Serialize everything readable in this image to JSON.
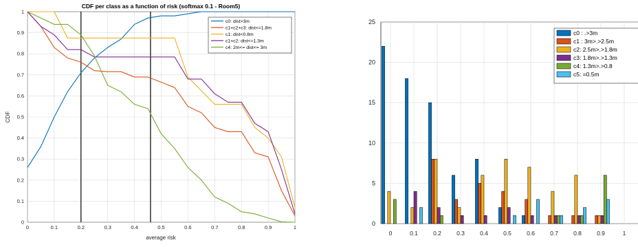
{
  "chart_data": [
    {
      "type": "line",
      "title": "CDF per class as a function of risk (softmax 0.1 - Room5)",
      "xlabel": "average risk",
      "ylabel": "CDF",
      "xlim": [
        0,
        1
      ],
      "ylim": [
        0,
        1
      ],
      "x_ticks": [
        "0",
        "0.1",
        "0.2",
        "0.3",
        "0.4",
        "0.5",
        "0.6",
        "0.7",
        "0.8",
        "0.9",
        "1"
      ],
      "y_ticks": [
        "0",
        "0.1",
        "0.2",
        "0.3",
        "0.4",
        "0.5",
        "0.6",
        "0.7",
        "0.8",
        "0.9",
        "1"
      ],
      "grid": true,
      "legend_position": "top-right",
      "series": [
        {
          "name": "c0: dist>3m",
          "color": "#0072BD",
          "x": [
            0,
            0.05,
            0.1,
            0.15,
            0.2,
            0.25,
            0.3,
            0.35,
            0.4,
            0.45,
            0.5,
            0.55,
            0.6,
            0.65,
            1
          ],
          "y": [
            0.26,
            0.36,
            0.5,
            0.62,
            0.71,
            0.78,
            0.83,
            0.87,
            0.94,
            0.97,
            0.98,
            0.98,
            0.99,
            1,
            1
          ]
        },
        {
          "name": "c1+c2+c3: dist<=1.8m",
          "color": "#D95319",
          "x": [
            0,
            0.05,
            0.1,
            0.15,
            0.2,
            0.25,
            0.3,
            0.35,
            0.4,
            0.45,
            0.5,
            0.55,
            0.6,
            0.65,
            0.7,
            0.75,
            0.8,
            0.85,
            0.9,
            0.95,
            1
          ],
          "y": [
            1,
            0.93,
            0.83,
            0.78,
            0.76,
            0.72,
            0.715,
            0.715,
            0.69,
            0.69,
            0.665,
            0.64,
            0.55,
            0.52,
            0.45,
            0.43,
            0.43,
            0.33,
            0.31,
            0.15,
            0.03
          ]
        },
        {
          "name": "c1: dist<0.8m",
          "color": "#EDB120",
          "x": [
            0,
            0.1,
            0.15,
            0.55,
            0.6,
            0.7,
            0.75,
            0.8,
            0.85,
            0.9,
            0.95,
            1
          ],
          "y": [
            1,
            1,
            0.875,
            0.875,
            0.69,
            0.56,
            0.56,
            0.56,
            0.45,
            0.4,
            0.31,
            0.07
          ]
        },
        {
          "name": "c1+c2: dist<=1.3m",
          "color": "#7E2F8E",
          "x": [
            0,
            0.05,
            0.1,
            0.15,
            0.2,
            0.25,
            0.55,
            0.6,
            0.65,
            0.7,
            0.75,
            0.8,
            0.85,
            0.9,
            0.95,
            1
          ],
          "y": [
            1,
            0.93,
            0.89,
            0.82,
            0.82,
            0.785,
            0.785,
            0.68,
            0.68,
            0.61,
            0.57,
            0.57,
            0.47,
            0.43,
            0.25,
            0.04
          ]
        },
        {
          "name": "c4: 2m<= dist<= 3m",
          "color": "#77AC30",
          "x": [
            0,
            0.1,
            0.15,
            0.2,
            0.25,
            0.3,
            0.35,
            0.4,
            0.45,
            0.5,
            0.55,
            0.6,
            0.65,
            0.7,
            0.75,
            0.8,
            0.85,
            0.9,
            0.95,
            1
          ],
          "y": [
            1,
            0.94,
            0.94,
            0.89,
            0.79,
            0.65,
            0.62,
            0.56,
            0.54,
            0.42,
            0.35,
            0.26,
            0.2,
            0.12,
            0.09,
            0.05,
            0.04,
            0.02,
            0.002,
            0
          ]
        }
      ],
      "vlines": [
        {
          "x": 0.2,
          "color": "#000000"
        },
        {
          "x": 0.46,
          "color": "#000000"
        }
      ]
    },
    {
      "type": "bar",
      "title": "",
      "xlabel": "",
      "ylabel": "",
      "ylim": [
        0,
        25
      ],
      "categories": [
        "0",
        "0.1",
        "0.2",
        "0.3",
        "0.4",
        "0.5",
        "0.6",
        "0.7",
        "0.8",
        "0.9",
        "1"
      ],
      "y_ticks": [
        "0",
        "5",
        "10",
        "15",
        "20",
        "25"
      ],
      "grid": true,
      "legend_position": "top-right",
      "series": [
        {
          "name": "c0 : .>3m",
          "color": "#0072BD",
          "values": [
            22,
            18,
            15,
            6,
            8,
            2,
            1,
            0,
            0,
            0,
            0
          ]
        },
        {
          "name": "c1 : 3m>.>2.5m",
          "color": "#D95319",
          "values": [
            0,
            0,
            8,
            3,
            5,
            4,
            3,
            1,
            1,
            1,
            0
          ]
        },
        {
          "name": "c2: 2.5m>.>1.8m",
          "color": "#EDB120",
          "values": [
            4,
            2,
            8,
            2,
            6,
            8,
            7,
            4,
            6,
            1,
            0
          ]
        },
        {
          "name": "c3: 1.8m>.>1.3m",
          "color": "#7E2F8E",
          "values": [
            0,
            4,
            2,
            1,
            1,
            2,
            1,
            1,
            1,
            1,
            0
          ]
        },
        {
          "name": "c4: 1.3m>.>0.8",
          "color": "#77AC30",
          "values": [
            3,
            0,
            1,
            0,
            0,
            0,
            0,
            1,
            1,
            6,
            0
          ]
        },
        {
          "name": "c5: =0.5m",
          "color": "#4DBEEE",
          "values": [
            0,
            2,
            0,
            0,
            0,
            1,
            3,
            1,
            2,
            3,
            0
          ]
        }
      ]
    }
  ]
}
